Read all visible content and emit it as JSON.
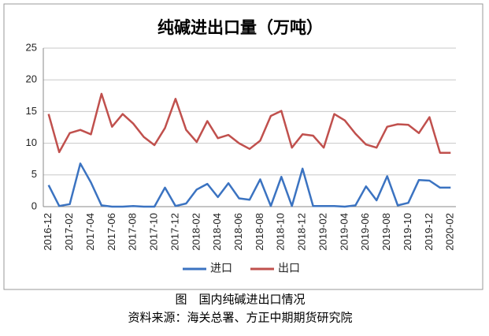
{
  "chart_data": {
    "type": "line",
    "title": "纯碱进出口量（万吨）",
    "caption": "图　国内纯碱进出口情况",
    "source": "资料来源：海关总署、方正中期期货研究院",
    "categories": [
      "2016-12",
      null,
      "2017-02",
      null,
      "2017-04",
      null,
      "2017-06",
      null,
      "2017-08",
      null,
      "2017-10",
      null,
      "2017-12",
      null,
      "2018-02",
      null,
      "2018-04",
      null,
      "2018-06",
      null,
      "2018-08",
      null,
      "2018-10",
      null,
      "2018-12",
      null,
      "2019-02",
      null,
      "2019-04",
      null,
      "2019-06",
      null,
      "2019-08",
      null,
      "2019-10",
      null,
      "2019-12",
      null,
      "2020-02"
    ],
    "series": [
      {
        "name": "进口",
        "color": "#3b73c1",
        "values": [
          3.4,
          0.1,
          0.4,
          6.8,
          3.8,
          0.2,
          0.0,
          0.0,
          0.1,
          0.0,
          0.0,
          3.0,
          0.1,
          0.5,
          2.7,
          3.6,
          1.5,
          3.7,
          1.3,
          1.1,
          4.3,
          0.1,
          4.7,
          0.1,
          6.0,
          0.1,
          0.1,
          0.1,
          0.0,
          0.2,
          3.2,
          1.0,
          4.8,
          0.2,
          0.6,
          4.2,
          4.1,
          3.0,
          3.0
        ]
      },
      {
        "name": "出口",
        "color": "#c0504d",
        "values": [
          14.6,
          8.6,
          11.6,
          12.1,
          11.4,
          17.8,
          12.6,
          14.6,
          13.1,
          11.0,
          9.7,
          12.4,
          17.0,
          12.1,
          10.2,
          13.5,
          10.8,
          11.3,
          10.0,
          9.1,
          10.4,
          14.3,
          15.1,
          9.3,
          11.4,
          11.2,
          9.3,
          14.6,
          13.6,
          11.5,
          9.8,
          9.3,
          12.6,
          13.0,
          12.9,
          11.6,
          14.1,
          8.5,
          8.5
        ]
      }
    ],
    "ylim": [
      0,
      25
    ],
    "yticks": [
      0,
      5,
      10,
      15,
      20,
      25
    ],
    "grid": true,
    "legend": "bottom"
  }
}
